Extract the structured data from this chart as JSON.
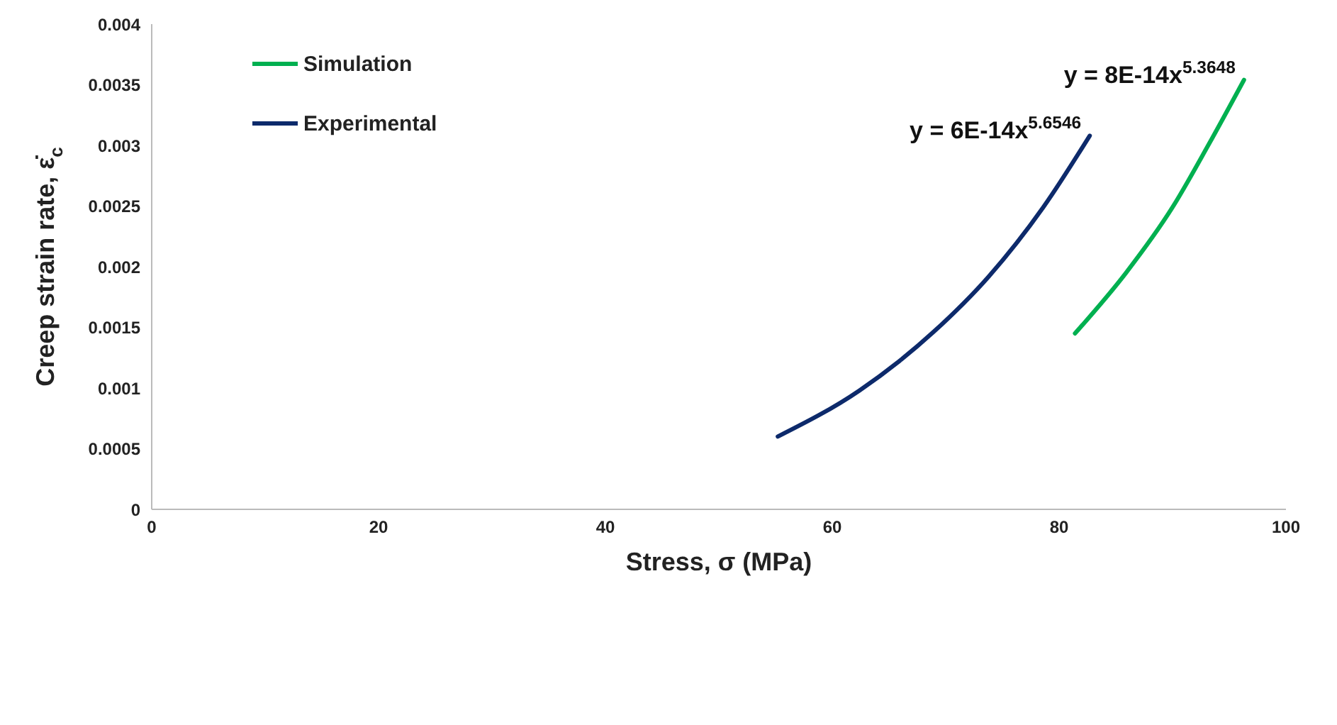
{
  "chart_data": {
    "type": "line",
    "xlabel": "Stress, σ (MPa)",
    "ylabel": "Creep strain rate, ε̇$_{c}$",
    "xlim": [
      0,
      100
    ],
    "xticks": [
      0,
      20,
      40,
      60,
      80,
      100
    ],
    "ylim": [
      0,
      0.004
    ],
    "yticks": [
      0,
      0.0005,
      0.001,
      0.0015,
      0.002,
      0.0025,
      0.003,
      0.0035,
      0.004
    ],
    "grid": false,
    "legend": "top left",
    "marker": "none",
    "line_style": "solid",
    "series": [
      {
        "name": "Simulation",
        "color": "#00b050",
        "x": [
          81.4,
          85.9,
          90.0,
          93.2,
          96.3
        ],
        "values": [
          0.00145,
          0.00195,
          0.00249,
          0.00301,
          0.00354
        ]
      },
      {
        "name": "Experimental",
        "color": "#0d2a6b",
        "x": [
          55.2,
          62.4,
          68.9,
          73.8,
          78.6,
          82.7
        ],
        "values": [
          0.0006,
          0.00098,
          0.00146,
          0.00192,
          0.00249,
          0.00308
        ]
      }
    ],
    "annotations": [
      {
        "text": "y = 8E-14x$^{5.3648}$",
        "x": 96.3,
        "y": 0.00354
      },
      {
        "text": "y = 6E-14x$^{5.6546}$",
        "x": 82.7,
        "y": 0.00308
      }
    ]
  }
}
